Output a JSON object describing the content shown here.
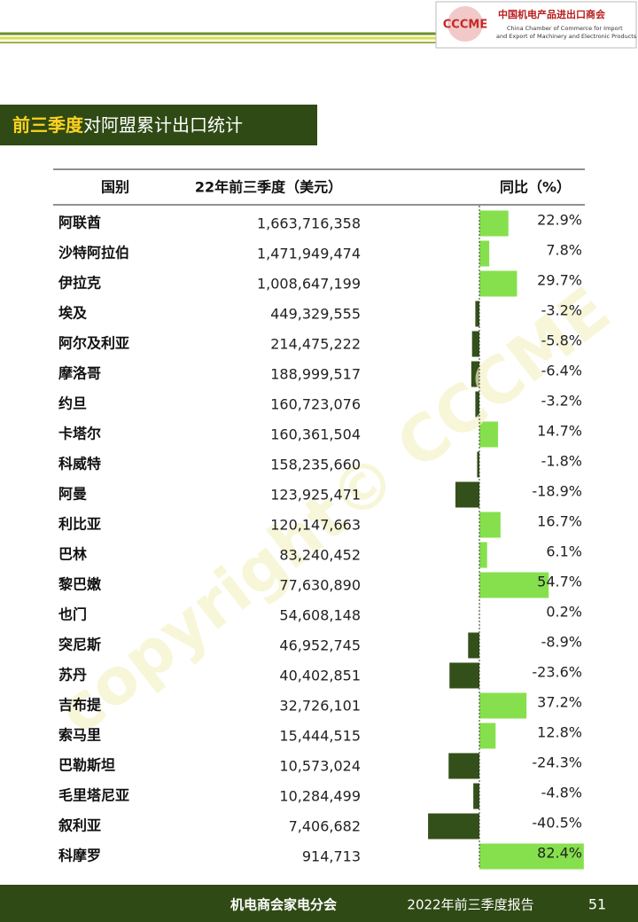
{
  "header": {
    "logo": "CCCME",
    "org_cn": "中国机电产品进出口商会",
    "org_en_1": "China Chamber of Commerce for Import",
    "org_en_2": "and Export of Machinery and Electronic Products"
  },
  "title": {
    "highlight": "前三季度",
    "rest": "对阿盟累计出口统计"
  },
  "watermark": "copyright© CCCME",
  "table": {
    "columns": [
      "国别",
      "22年前三季度（美元）",
      "同比（%）"
    ],
    "rows": [
      {
        "country": "阿联酋",
        "exports": "1,663,716,358",
        "change": 22.9,
        "change_label": "22.9%"
      },
      {
        "country": "沙特阿拉伯",
        "exports": "1,471,949,474",
        "change": 7.8,
        "change_label": "7.8%"
      },
      {
        "country": "伊拉克",
        "exports": "1,008,647,199",
        "change": 29.7,
        "change_label": "29.7%"
      },
      {
        "country": "埃及",
        "exports": "449,329,555",
        "change": -3.2,
        "change_label": "-3.2%"
      },
      {
        "country": "阿尔及利亚",
        "exports": "214,475,222",
        "change": -5.8,
        "change_label": "-5.8%"
      },
      {
        "country": "摩洛哥",
        "exports": "188,999,517",
        "change": -6.4,
        "change_label": "-6.4%"
      },
      {
        "country": "约旦",
        "exports": "160,723,076",
        "change": -3.2,
        "change_label": "-3.2%"
      },
      {
        "country": "卡塔尔",
        "exports": "160,361,504",
        "change": 14.7,
        "change_label": "14.7%"
      },
      {
        "country": "科威特",
        "exports": "158,235,660",
        "change": -1.8,
        "change_label": "-1.8%"
      },
      {
        "country": "阿曼",
        "exports": "123,925,471",
        "change": -18.9,
        "change_label": "-18.9%"
      },
      {
        "country": "利比亚",
        "exports": "120,147,663",
        "change": 16.7,
        "change_label": "16.7%"
      },
      {
        "country": "巴林",
        "exports": "83,240,452",
        "change": 6.1,
        "change_label": "6.1%"
      },
      {
        "country": "黎巴嫩",
        "exports": "77,630,890",
        "change": 54.7,
        "change_label": "54.7%"
      },
      {
        "country": "也门",
        "exports": "54,608,148",
        "change": 0.2,
        "change_label": "0.2%"
      },
      {
        "country": "突尼斯",
        "exports": "46,952,745",
        "change": -8.9,
        "change_label": "-8.9%"
      },
      {
        "country": "苏丹",
        "exports": "40,402,851",
        "change": -23.6,
        "change_label": "-23.6%"
      },
      {
        "country": "吉布提",
        "exports": "32,726,101",
        "change": 37.2,
        "change_label": "37.2%"
      },
      {
        "country": "索马里",
        "exports": "15,444,515",
        "change": 12.8,
        "change_label": "12.8%"
      },
      {
        "country": "巴勒斯坦",
        "exports": "10,573,024",
        "change": -24.3,
        "change_label": "-24.3%"
      },
      {
        "country": "毛里塔尼亚",
        "exports": "10,284,499",
        "change": -4.8,
        "change_label": "-4.8%"
      },
      {
        "country": "叙利亚",
        "exports": "7,406,682",
        "change": -40.5,
        "change_label": "-40.5%"
      },
      {
        "country": "科摩罗",
        "exports": "914,713",
        "change": 82.4,
        "change_label": "82.4%"
      }
    ]
  },
  "footer": {
    "department": "机电商会家电分会",
    "report": "2022年前三季度报告",
    "page": "51"
  }
}
